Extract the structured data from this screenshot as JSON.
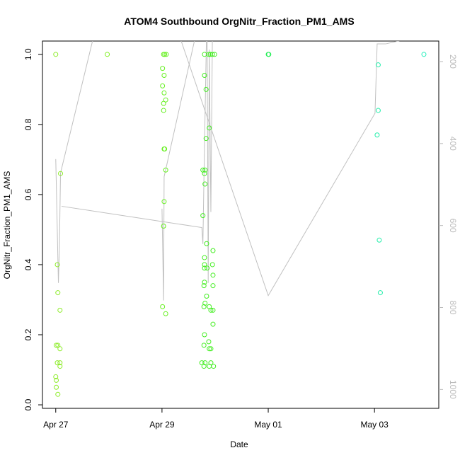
{
  "chart_data": {
    "type": "scatter",
    "title": "ATOM4 Southbound OrgNitr_Fraction_PM1_AMS",
    "xlabel": "Date",
    "ylabel": "OrgNitr_Fraction_PM1_AMS",
    "x": [
      0,
      0.01,
      0.04,
      0.03,
      0.04,
      0.09,
      0.08,
      0.03,
      0.08,
      0.08,
      0.08,
      0,
      0.01,
      0.01,
      0.04,
      0.97,
      2.03,
      2.05,
      2.08,
      2.01,
      2.04,
      2.01,
      2.04,
      2.07,
      2.03,
      2.03,
      2.04,
      2.05,
      2.07,
      2.04,
      2.03,
      2.01,
      2.07,
      2.8,
      2.88,
      2.91,
      2.95,
      2.99,
      2.8,
      2.83,
      2.89,
      2.83,
      2.77,
      2.81,
      2.8,
      2.81,
      2.77,
      2.84,
      2.96,
      2.8,
      2.8,
      2.95,
      2.8,
      2.85,
      2.96,
      2.8,
      2.79,
      2.96,
      2.84,
      2.81,
      2.79,
      2.89,
      2.92,
      2.96,
      2.96,
      2.8,
      2.88,
      2.79,
      2.89,
      2.92,
      2.75,
      2.81,
      2.92,
      2.79,
      2.89,
      2.97,
      4.0,
      4.01,
      6.07,
      6.07,
      6.05,
      6.09,
      6.11,
      6.93
    ],
    "values": [
      1,
      0.17,
      0.17,
      0.4,
      0.32,
      0.66,
      0.27,
      0.12,
      0.12,
      0.16,
      0.11,
      0.08,
      0.07,
      0.05,
      0.03,
      1,
      1,
      1,
      1,
      0.96,
      0.94,
      0.91,
      0.89,
      0.87,
      0.86,
      0.84,
      0.73,
      0.73,
      0.67,
      0.58,
      0.51,
      0.28,
      0.26,
      1,
      1,
      1,
      1,
      1,
      0.94,
      0.9,
      0.79,
      0.76,
      0.67,
      0.67,
      0.66,
      0.63,
      0.54,
      0.46,
      0.44,
      0.42,
      0.4,
      0.4,
      0.39,
      0.39,
      0.37,
      0.35,
      0.34,
      0.34,
      0.31,
      0.29,
      0.28,
      0.28,
      0.27,
      0.27,
      0.23,
      0.2,
      0.18,
      0.17,
      0.16,
      0.16,
      0.12,
      0.12,
      0.12,
      0.11,
      0.11,
      0.11,
      1,
      1,
      0.97,
      0.84,
      0.77,
      0.47,
      0.32,
      1
    ],
    "colors": [
      "#8cec28",
      "#8cec28",
      "#8cec28",
      "#8cec28",
      "#8cec28",
      "#8cec28",
      "#8cec28",
      "#8cec28",
      "#8cec28",
      "#8cec28",
      "#8cec28",
      "#8cec28",
      "#8cec28",
      "#8cec28",
      "#8cec28",
      "#80f020",
      "#66f020",
      "#66f020",
      "#66f020",
      "#66f020",
      "#66f020",
      "#66f020",
      "#66f020",
      "#66f020",
      "#66f020",
      "#66f020",
      "#66f020",
      "#66f020",
      "#66f020",
      "#66f020",
      "#66f020",
      "#66f020",
      "#66f020",
      "#44ee22",
      "#44ee22",
      "#44ee22",
      "#44ee22",
      "#44ee22",
      "#44ee22",
      "#44ee22",
      "#44ee22",
      "#44ee22",
      "#44ee22",
      "#44ee22",
      "#44ee22",
      "#44ee22",
      "#44ee22",
      "#44ee22",
      "#44ee22",
      "#44ee22",
      "#44ee22",
      "#44ee22",
      "#44ee22",
      "#44ee22",
      "#44ee22",
      "#44ee22",
      "#44ee22",
      "#44ee22",
      "#44ee22",
      "#44ee22",
      "#44ee22",
      "#44ee22",
      "#44ee22",
      "#44ee22",
      "#44ee22",
      "#44ee22",
      "#44ee22",
      "#44ee22",
      "#44ee22",
      "#44ee22",
      "#44ee22",
      "#44ee22",
      "#44ee22",
      "#44ee22",
      "#44ee22",
      "#44ee22",
      "#22ee55",
      "#22ee55",
      "#22eeaa",
      "#22eeaa",
      "#22eeaa",
      "#22eeaa",
      "#22eeaa",
      "#22eebb"
    ],
    "line": {
      "axis": "y2",
      "color": "#c0c0c0",
      "x": [
        0,
        0.01,
        0.05,
        0.07,
        0.09,
        0.75,
        null,
        0.11,
        2.75,
        2.77,
        2.79,
        2.84,
        null,
        2.0,
        2.03,
        2.04,
        2.61,
        2.68,
        null,
        2.28,
        4.0,
        6.01,
        6.05,
        6.21,
        6.92,
        null,
        2.85,
        2.87,
        2.89,
        2.92,
        2.95
      ],
      "values": [
        438,
        495,
        740,
        645,
        472,
        119,
        null,
        553,
        605,
        645,
        481,
        119,
        null,
        559,
        783,
        481,
        150,
        119,
        null,
        119,
        771,
        326,
        157,
        157,
        136,
        null,
        150,
        740,
        171,
        567,
        119
      ]
    },
    "xlim": [
      -0.25,
      7.21
    ],
    "ylim": [
      -0.01,
      1.038
    ],
    "y2lim": [
      1046,
      150
    ],
    "xticks": [
      {
        "value": 0,
        "label": "Apr 27"
      },
      {
        "value": 2,
        "label": "Apr 29"
      },
      {
        "value": 4,
        "label": "May 01"
      },
      {
        "value": 6,
        "label": "May 03"
      }
    ],
    "yticks": [
      {
        "value": 0,
        "label": "0.0"
      },
      {
        "value": 0.2,
        "label": "0.2"
      },
      {
        "value": 0.4,
        "label": "0.4"
      },
      {
        "value": 0.6,
        "label": "0.6"
      },
      {
        "value": 0.8,
        "label": "0.8"
      },
      {
        "value": 1,
        "label": "1.0"
      }
    ],
    "y2ticks": [
      200,
      400,
      600,
      800,
      1000
    ]
  }
}
